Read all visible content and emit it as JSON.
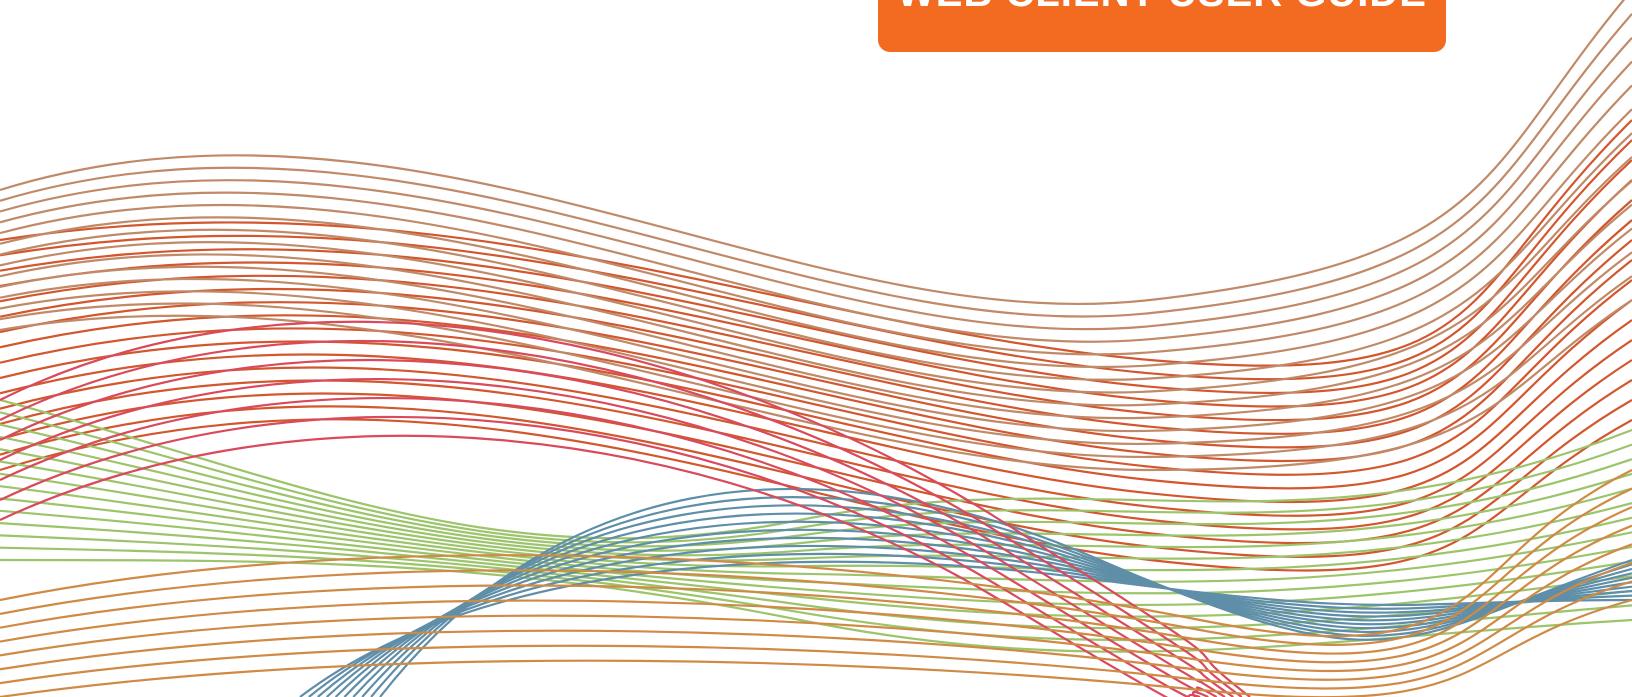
{
  "banner": {
    "title": "WEB CLIENT USER GUIDE"
  }
}
